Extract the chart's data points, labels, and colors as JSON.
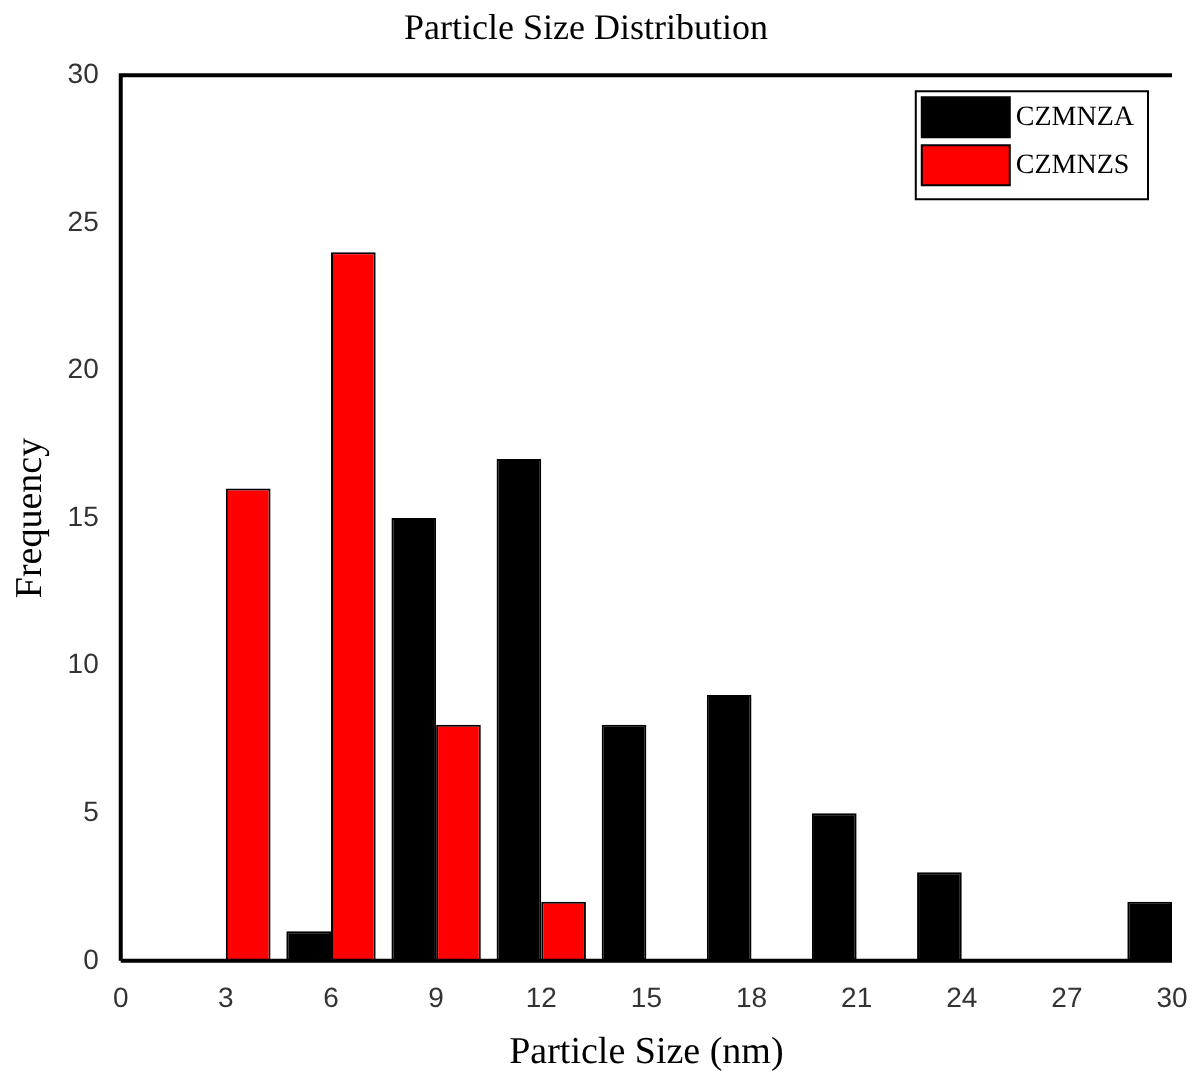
{
  "chart_data": {
    "type": "bar",
    "title": "Particle Size Distribution",
    "xlabel": "Particle Size (nm)",
    "ylabel": "Frequency",
    "x": [
      3,
      6,
      9,
      12,
      15,
      18,
      21,
      24,
      30
    ],
    "series": [
      {
        "name": "CZMNZA",
        "color": "#000000",
        "values": [
          null,
          1,
          15,
          17,
          8,
          9,
          5,
          3,
          2
        ]
      },
      {
        "name": "CZMNZS",
        "color": "#ff0000",
        "values": [
          16,
          24,
          8,
          2,
          null,
          null,
          null,
          null,
          null
        ]
      }
    ],
    "xlim": [
      0,
      30
    ],
    "xticks": [
      0,
      3,
      6,
      9,
      12,
      15,
      18,
      21,
      24,
      27,
      30
    ],
    "ylim": [
      0,
      30
    ],
    "yticks": [
      0,
      5,
      10,
      15,
      20,
      25,
      30
    ],
    "grid": false,
    "legend": "top right"
  }
}
